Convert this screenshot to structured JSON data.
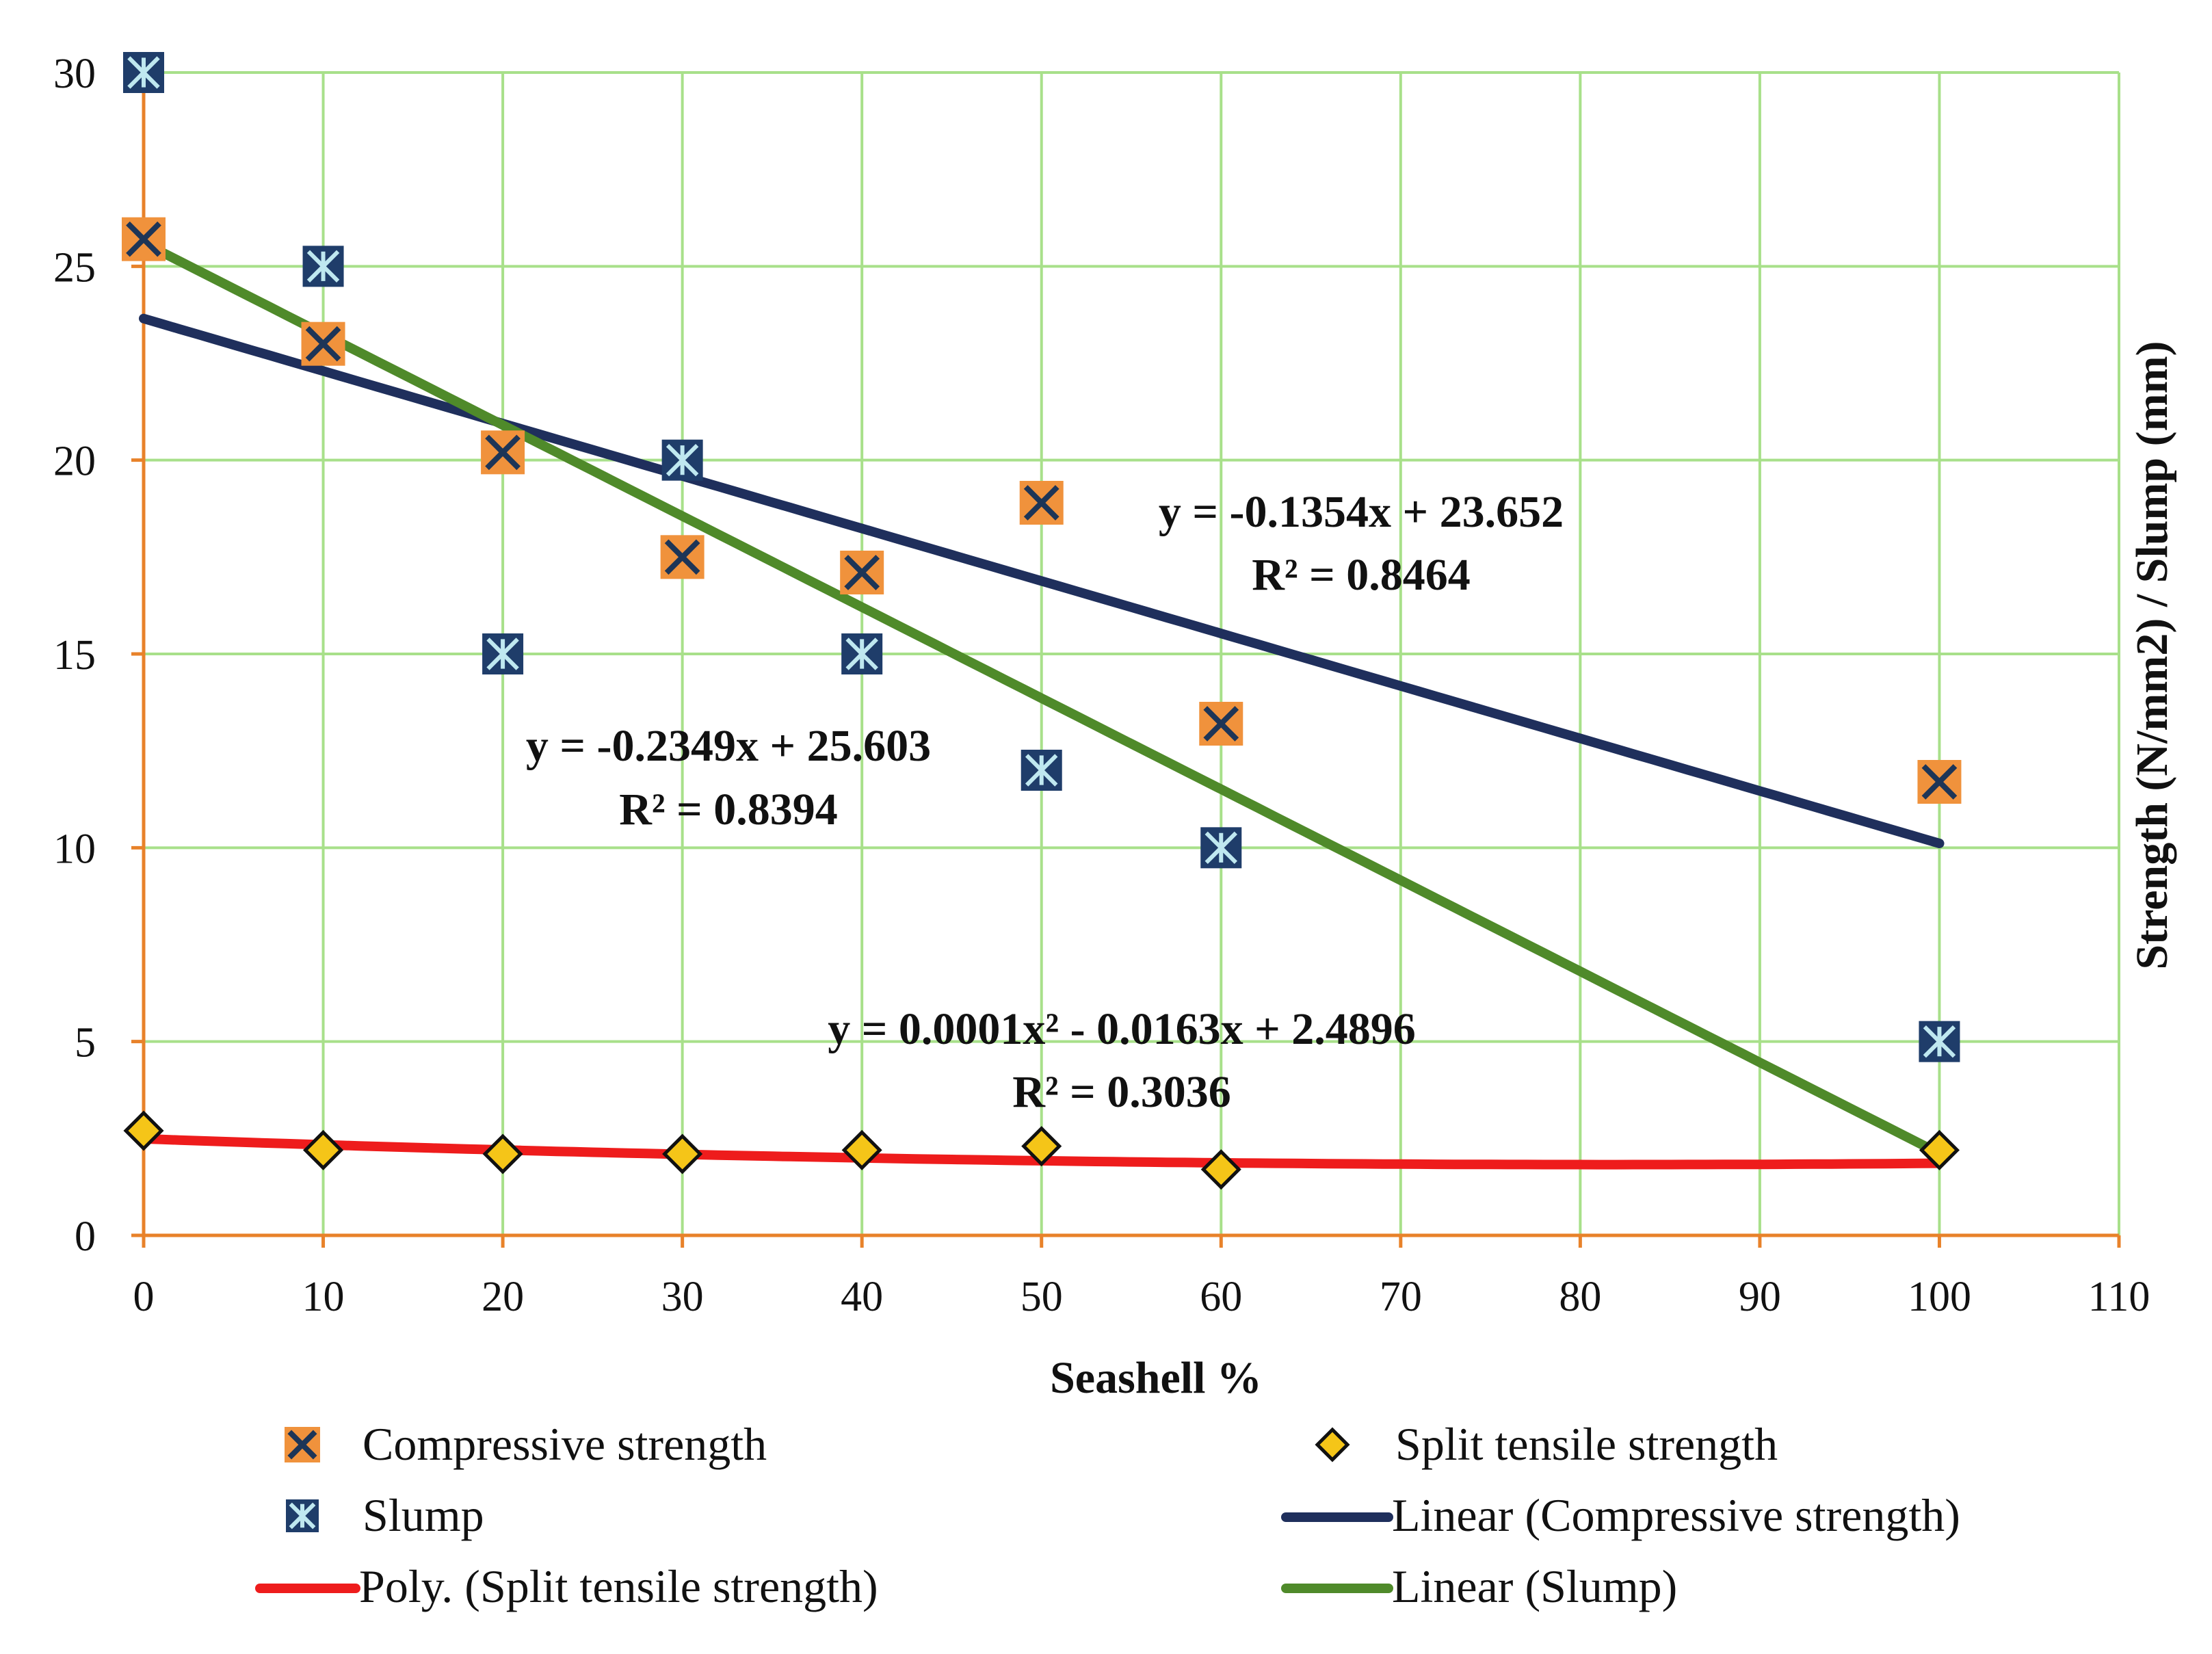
{
  "chart_data": {
    "type": "scatter",
    "title": "",
    "xlabel": "Seashell %",
    "ylabel": "Strength (N/mm2) / Slump (mm)",
    "xlim": [
      0,
      110
    ],
    "ylim": [
      0,
      30
    ],
    "x_ticks": [
      "0",
      "10",
      "20",
      "30",
      "40",
      "50",
      "60",
      "70",
      "80",
      "90",
      "100",
      "110"
    ],
    "y_ticks": [
      "0",
      "5",
      "10",
      "15",
      "20",
      "25",
      "30"
    ],
    "grid": true,
    "colors": {
      "grid": "#a8e08a",
      "axis": "#e8822a",
      "compressive_fill": "#f0923c",
      "x_mark": "#1d3557",
      "slump_fill": "#1f3d6a",
      "slump_mark": "#bfe8f0",
      "split_fill": "#f5c518",
      "compressive_trend": "#1f2f5c",
      "slump_trend": "#4f8a2a",
      "split_trend": "#ee1c1c"
    },
    "series": [
      {
        "name": "Compressive strength",
        "marker": "x-square",
        "x": [
          0,
          10,
          20,
          30,
          40,
          50,
          60,
          100
        ],
        "y": [
          25.7,
          23.0,
          20.2,
          17.5,
          17.1,
          18.9,
          13.2,
          11.7
        ]
      },
      {
        "name": "Split tensile strength",
        "marker": "diamond",
        "x": [
          0,
          10,
          20,
          30,
          40,
          50,
          60,
          100
        ],
        "y": [
          2.7,
          2.2,
          2.1,
          2.1,
          2.2,
          2.3,
          1.7,
          2.2
        ]
      },
      {
        "name": "Slump",
        "marker": "star-square",
        "x": [
          0,
          10,
          20,
          30,
          40,
          50,
          60,
          100
        ],
        "y": [
          30,
          25,
          15,
          20,
          15,
          12,
          10,
          5
        ]
      }
    ],
    "trendlines": [
      {
        "name": "Linear (Compressive strength)",
        "kind": "linear",
        "coefficients": [
          -0.1354,
          23.652
        ],
        "x_range": [
          0,
          100
        ],
        "equation": "y = -0.1354x + 23.652",
        "r2": "R² = 0.8464"
      },
      {
        "name": "Linear (Slump)",
        "kind": "linear",
        "coefficients": [
          -0.2349,
          25.603
        ],
        "x_range": [
          0,
          100
        ],
        "equation": "y = -0.2349x + 25.603",
        "r2": "R² = 0.8394"
      },
      {
        "name": "Poly. (Split tensile strength)",
        "kind": "poly2",
        "coefficients": [
          0.0001,
          -0.0163,
          2.4896
        ],
        "x_range": [
          0,
          100
        ],
        "equation": "y = 0.0001x² - 0.0163x + 2.4896",
        "r2": "R² = 0.3036"
      }
    ],
    "legend": {
      "position": "bottom",
      "items": [
        "Compressive strength",
        "Split tensile strength",
        "Slump",
        "Linear (Compressive strength)",
        "Poly. (Split tensile strength)",
        "Linear (Slump)"
      ]
    }
  }
}
